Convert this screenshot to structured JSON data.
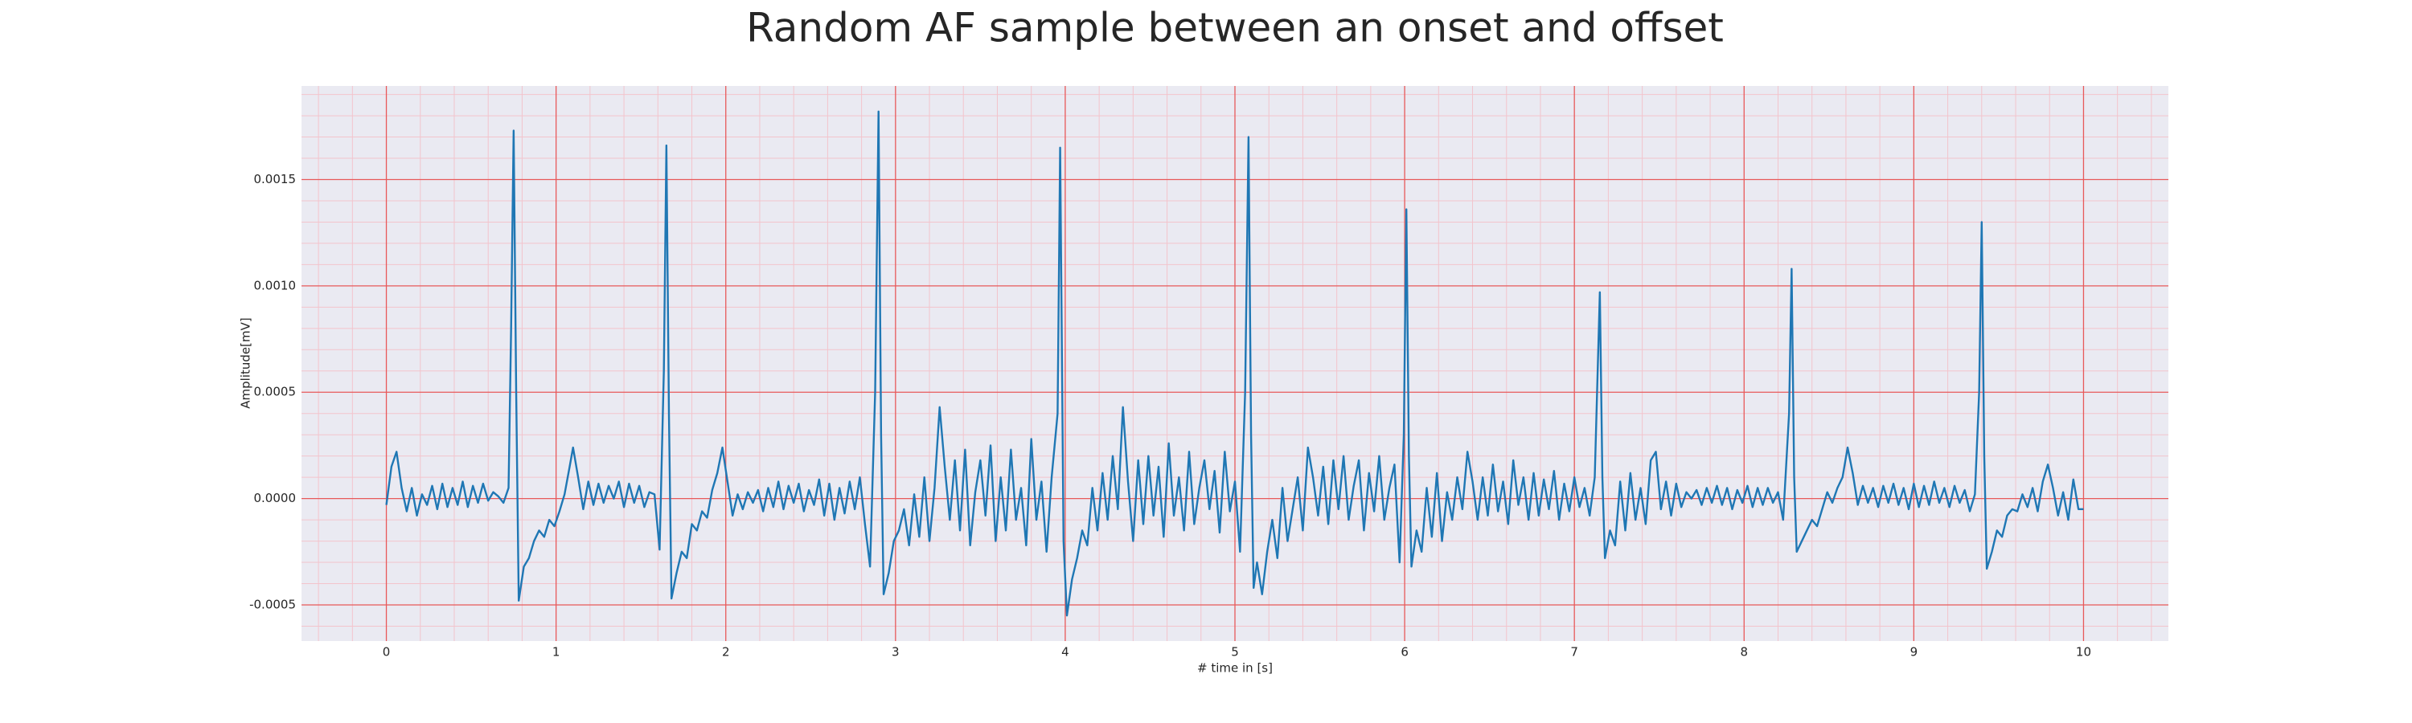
{
  "chart_data": {
    "type": "line",
    "title": "Random AF sample between an onset and offset",
    "x_label": "# time in [s]",
    "y_label": "Amplitude[mV]",
    "xlim": [
      -0.5,
      10.5
    ],
    "ylim": [
      -0.00067,
      0.00194
    ],
    "xticks": [
      0,
      1,
      2,
      3,
      4,
      5,
      6,
      7,
      8,
      9,
      10
    ],
    "yticks": [
      -0.0005,
      {
        "value": 0,
        "label": "0.0000"
      },
      0.0005,
      {
        "value": 0.001,
        "label": "0.0010"
      },
      0.0015
    ],
    "grid": true,
    "grid_color": "#e8595a",
    "minor_grid_color": "#f3c4cc",
    "background": "#eaeaf2",
    "series": [
      {
        "color": "#1f77b4",
        "x": [
          0,
          0.03,
          0.06,
          0.09,
          0.12,
          0.15,
          0.18,
          0.21,
          0.24,
          0.27,
          0.3,
          0.33,
          0.36,
          0.39,
          0.42,
          0.45,
          0.48,
          0.51,
          0.54,
          0.57,
          0.6,
          0.63,
          0.66,
          0.69,
          0.72,
          0.735,
          0.75,
          0.765,
          0.78,
          0.81,
          0.84,
          0.87,
          0.9,
          0.93,
          0.96,
          0.99,
          1.02,
          1.05,
          1.08,
          1.1,
          1.13,
          1.16,
          1.19,
          1.22,
          1.25,
          1.28,
          1.31,
          1.34,
          1.37,
          1.4,
          1.43,
          1.46,
          1.49,
          1.52,
          1.55,
          1.58,
          1.61,
          1.635,
          1.65,
          1.665,
          1.68,
          1.71,
          1.74,
          1.77,
          1.8,
          1.83,
          1.86,
          1.89,
          1.92,
          1.95,
          1.98,
          2.01,
          2.04,
          2.07,
          2.1,
          2.13,
          2.16,
          2.19,
          2.22,
          2.25,
          2.28,
          2.31,
          2.34,
          2.37,
          2.4,
          2.43,
          2.46,
          2.49,
          2.52,
          2.55,
          2.58,
          2.61,
          2.64,
          2.67,
          2.7,
          2.73,
          2.76,
          2.79,
          2.82,
          2.85,
          2.88,
          2.9,
          2.915,
          2.93,
          2.96,
          2.99,
          3.02,
          3.05,
          3.08,
          3.11,
          3.14,
          3.17,
          3.2,
          3.23,
          3.26,
          3.29,
          3.32,
          3.35,
          3.38,
          3.41,
          3.44,
          3.47,
          3.5,
          3.53,
          3.56,
          3.59,
          3.62,
          3.65,
          3.68,
          3.71,
          3.74,
          3.77,
          3.8,
          3.83,
          3.86,
          3.89,
          3.92,
          3.955,
          3.97,
          3.99,
          4.01,
          4.04,
          4.07,
          4.1,
          4.13,
          4.16,
          4.19,
          4.22,
          4.25,
          4.28,
          4.31,
          4.34,
          4.37,
          4.4,
          4.43,
          4.46,
          4.49,
          4.52,
          4.55,
          4.58,
          4.61,
          4.64,
          4.67,
          4.7,
          4.73,
          4.76,
          4.79,
          4.82,
          4.85,
          4.88,
          4.91,
          4.94,
          4.97,
          5,
          5.03,
          5.06,
          5.08,
          5.095,
          5.11,
          5.13,
          5.16,
          5.19,
          5.22,
          5.25,
          5.28,
          5.31,
          5.34,
          5.37,
          5.4,
          5.43,
          5.46,
          5.49,
          5.52,
          5.55,
          5.58,
          5.61,
          5.64,
          5.67,
          5.7,
          5.73,
          5.76,
          5.79,
          5.82,
          5.85,
          5.88,
          5.91,
          5.94,
          5.97,
          5.995,
          6.01,
          6.025,
          6.04,
          6.07,
          6.1,
          6.13,
          6.16,
          6.19,
          6.22,
          6.25,
          6.28,
          6.31,
          6.34,
          6.37,
          6.4,
          6.43,
          6.46,
          6.49,
          6.52,
          6.55,
          6.58,
          6.61,
          6.64,
          6.67,
          6.7,
          6.73,
          6.76,
          6.79,
          6.82,
          6.85,
          6.88,
          6.91,
          6.94,
          6.97,
          7,
          7.03,
          7.06,
          7.09,
          7.12,
          7.15,
          7.165,
          7.18,
          7.21,
          7.24,
          7.27,
          7.3,
          7.33,
          7.36,
          7.39,
          7.42,
          7.45,
          7.48,
          7.51,
          7.54,
          7.57,
          7.6,
          7.63,
          7.66,
          7.69,
          7.72,
          7.75,
          7.78,
          7.81,
          7.84,
          7.87,
          7.9,
          7.93,
          7.96,
          7.99,
          8.02,
          8.05,
          8.08,
          8.11,
          8.14,
          8.17,
          8.2,
          8.23,
          8.265,
          8.28,
          8.295,
          8.31,
          8.34,
          8.37,
          8.4,
          8.43,
          8.46,
          8.49,
          8.52,
          8.55,
          8.58,
          8.61,
          8.64,
          8.67,
          8.7,
          8.73,
          8.76,
          8.79,
          8.82,
          8.85,
          8.88,
          8.91,
          8.94,
          8.97,
          9,
          9.03,
          9.06,
          9.09,
          9.12,
          9.15,
          9.18,
          9.21,
          9.24,
          9.27,
          9.3,
          9.33,
          9.36,
          9.385,
          9.4,
          9.415,
          9.43,
          9.46,
          9.49,
          9.52,
          9.55,
          9.58,
          9.61,
          9.64,
          9.67,
          9.7,
          9.73,
          9.76,
          9.79,
          9.82,
          9.85,
          9.88,
          9.91,
          9.94,
          9.97,
          10
        ],
        "values": [
          -3e-05,
          0.00015,
          0.00022,
          5e-05,
          -6e-05,
          5e-05,
          -8e-05,
          2e-05,
          -3e-05,
          6e-05,
          -5e-05,
          7e-05,
          -4e-05,
          5e-05,
          -3e-05,
          8e-05,
          -4e-05,
          6e-05,
          -2e-05,
          7e-05,
          -1e-05,
          3e-05,
          1e-05,
          -2e-05,
          5e-05,
          0.0008,
          0.00173,
          0.0005,
          -0.00048,
          -0.00032,
          -0.00028,
          -0.0002,
          -0.00015,
          -0.00018,
          -0.0001,
          -0.00013,
          -6e-05,
          2e-05,
          0.00015,
          0.00024,
          0.0001,
          -5e-05,
          8e-05,
          -3e-05,
          7e-05,
          -2e-05,
          6e-05,
          0,
          8e-05,
          -4e-05,
          7e-05,
          -2e-05,
          6e-05,
          -4e-05,
          3e-05,
          2e-05,
          -0.00024,
          0.0006,
          0.00166,
          0.0004,
          -0.00047,
          -0.00035,
          -0.00025,
          -0.00028,
          -0.00012,
          -0.00015,
          -6e-05,
          -9e-05,
          4e-05,
          0.00012,
          0.00024,
          8e-05,
          -8e-05,
          2e-05,
          -5e-05,
          3e-05,
          -2e-05,
          4e-05,
          -6e-05,
          5e-05,
          -4e-05,
          8e-05,
          -5e-05,
          6e-05,
          -2e-05,
          7e-05,
          -6e-05,
          4e-05,
          -3e-05,
          9e-05,
          -8e-05,
          7e-05,
          -0.0001,
          5e-05,
          -7e-05,
          8e-05,
          -5e-05,
          0.0001,
          -0.00012,
          -0.00032,
          0.0005,
          0.00182,
          0.0003,
          -0.00045,
          -0.00035,
          -0.0002,
          -0.00015,
          -5e-05,
          -0.00022,
          2e-05,
          -0.00018,
          0.0001,
          -0.0002,
          5e-05,
          0.00043,
          0.00015,
          -0.0001,
          0.00018,
          -0.00015,
          0.00023,
          -0.00022,
          3e-05,
          0.00018,
          -8e-05,
          0.00025,
          -0.0002,
          0.0001,
          -0.00015,
          0.00023,
          -0.0001,
          5e-05,
          -0.00022,
          0.00028,
          -0.0001,
          8e-05,
          -0.00025,
          0.0001,
          0.0004,
          0.00165,
          -0.0002,
          -0.00055,
          -0.00038,
          -0.00028,
          -0.00015,
          -0.00022,
          5e-05,
          -0.00015,
          0.00012,
          -0.0001,
          0.0002,
          -5e-05,
          0.00043,
          8e-05,
          -0.0002,
          0.00018,
          -0.00012,
          0.0002,
          -8e-05,
          0.00015,
          -0.00018,
          0.00026,
          -8e-05,
          0.0001,
          -0.00015,
          0.00022,
          -0.00012,
          5e-05,
          0.00018,
          -5e-05,
          0.00013,
          -0.00016,
          0.00022,
          -6e-05,
          8e-05,
          -0.00025,
          0.0005,
          0.0017,
          0.0003,
          -0.00042,
          -0.0003,
          -0.00045,
          -0.00025,
          -0.0001,
          -0.00028,
          5e-05,
          -0.0002,
          -5e-05,
          0.0001,
          -0.00015,
          0.00024,
          0.0001,
          -8e-05,
          0.00015,
          -0.00012,
          0.00018,
          -5e-05,
          0.0002,
          -0.0001,
          6e-05,
          0.00018,
          -0.00015,
          0.00012,
          -6e-05,
          0.0002,
          -0.0001,
          5e-05,
          0.00016,
          -0.0003,
          0.0003,
          0.00136,
          0.0002,
          -0.00032,
          -0.00015,
          -0.00025,
          5e-05,
          -0.00018,
          0.00012,
          -0.0002,
          3e-05,
          -0.0001,
          0.0001,
          -5e-05,
          0.00022,
          8e-05,
          -0.0001,
          0.0001,
          -8e-05,
          0.00016,
          -6e-05,
          8e-05,
          -0.00012,
          0.00018,
          -3e-05,
          0.0001,
          -0.0001,
          0.00012,
          -8e-05,
          9e-05,
          -5e-05,
          0.00013,
          -0.0001,
          7e-05,
          -6e-05,
          0.0001,
          -4e-05,
          5e-05,
          -8e-05,
          0.0001,
          0.00097,
          0.0001,
          -0.00028,
          -0.00015,
          -0.00022,
          8e-05,
          -0.00015,
          0.00012,
          -0.0001,
          5e-05,
          -0.00012,
          0.00018,
          0.00022,
          -5e-05,
          8e-05,
          -8e-05,
          7e-05,
          -4e-05,
          3e-05,
          0,
          4e-05,
          -3e-05,
          5e-05,
          -2e-05,
          6e-05,
          -3e-05,
          5e-05,
          -5e-05,
          4e-05,
          -2e-05,
          6e-05,
          -4e-05,
          5e-05,
          -3e-05,
          5e-05,
          -2e-05,
          3e-05,
          -0.0001,
          0.0004,
          0.00108,
          0.0001,
          -0.00025,
          -0.0002,
          -0.00015,
          -0.0001,
          -0.00013,
          -5e-05,
          3e-05,
          -2e-05,
          5e-05,
          0.0001,
          0.00024,
          0.00012,
          -3e-05,
          6e-05,
          -2e-05,
          5e-05,
          -4e-05,
          6e-05,
          -2e-05,
          7e-05,
          -3e-05,
          5e-05,
          -5e-05,
          7e-05,
          -4e-05,
          6e-05,
          -3e-05,
          8e-05,
          -2e-05,
          5e-05,
          -4e-05,
          6e-05,
          -2e-05,
          4e-05,
          -6e-05,
          2e-05,
          0.0005,
          0.0013,
          0.0002,
          -0.00033,
          -0.00025,
          -0.00015,
          -0.00018,
          -8e-05,
          -5e-05,
          -6e-05,
          2e-05,
          -4e-05,
          5e-05,
          -6e-05,
          8e-05,
          0.00016,
          5e-05,
          -8e-05,
          3e-05,
          -0.0001,
          9e-05,
          -5e-05,
          -5e-05
        ]
      }
    ]
  }
}
